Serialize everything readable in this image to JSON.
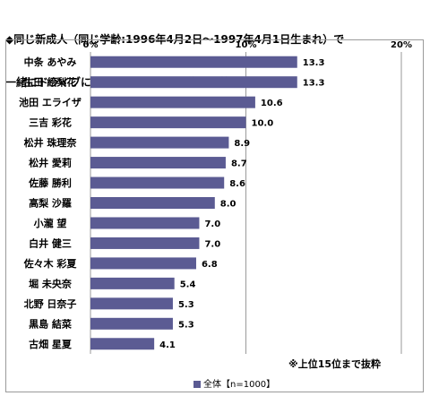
{
  "title_lines": [
    "◆同じ新成人（同じ学齢:1996年4月2日～1997年4月1日生まれ）で",
    "一緒にドライブに行きたい有名人　※複数回答"
  ],
  "note": "※上位15位まで抜粋",
  "colors": {
    "bar": "#5b5b93",
    "grid": "#9a9a9a"
  },
  "chart_data": {
    "type": "bar",
    "orientation": "horizontal",
    "title": "◆同じ新成人（同じ学齢:1996年4月2日～1997年4月1日生まれ）で 一緒にドライブに行きたい有名人　※複数回答",
    "categories": [
      "中条 あやみ",
      "生田 絵梨花",
      "池田 エライザ",
      "三吉 彩花",
      "松井 珠理奈",
      "松井 愛莉",
      "佐藤 勝利",
      "高梨 沙羅",
      "小瀧 望",
      "白井 健三",
      "佐々木 彩夏",
      "堀 未央奈",
      "北野 日奈子",
      "黒島 結菜",
      "古畑 星夏"
    ],
    "series": [
      {
        "name": "全体【n=1000】",
        "values": [
          13.3,
          13.3,
          10.6,
          10.0,
          8.9,
          8.7,
          8.6,
          8.0,
          7.0,
          7.0,
          6.8,
          5.4,
          5.3,
          5.3,
          4.1
        ]
      }
    ],
    "value_labels": [
      "13.3",
      "13.3",
      "10.6",
      "10.0",
      "8.9",
      "8.7",
      "8.6",
      "8.0",
      "7.0",
      "7.0",
      "6.8",
      "5.4",
      "5.3",
      "5.3",
      "4.1"
    ],
    "xlim": [
      0,
      20
    ],
    "xticks": [
      0,
      10,
      20
    ],
    "xtick_labels": [
      "0%",
      "10%",
      "20%"
    ],
    "grid": true,
    "legend_position": "bottom"
  }
}
